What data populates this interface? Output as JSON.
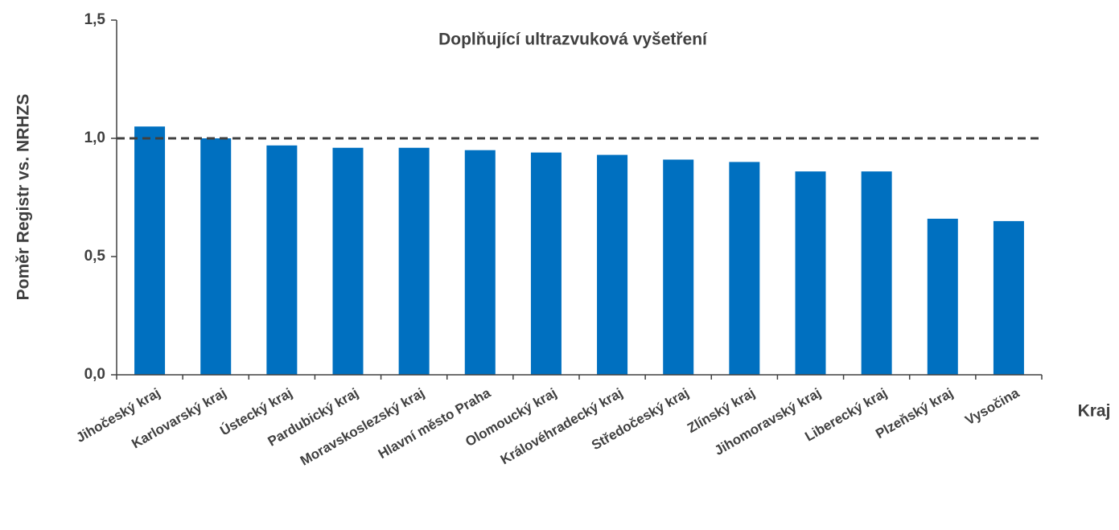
{
  "chart_data": {
    "type": "bar",
    "title": "Doplňující ultrazvuková vyšetření",
    "y_label": "Poměr Registr vs. NRHZS",
    "x_label": "Kraj",
    "categories": [
      "Jihočeský kraj",
      "Karlovarský kraj",
      "Ústecký kraj",
      "Pardubický kraj",
      "Moravskoslezský kraj",
      "Hlavní město Praha",
      "Olomoucký kraj",
      "Královéhradecký kraj",
      "Středočeský kraj",
      "Zlínský kraj",
      "Jihomoravský kraj",
      "Liberecký kraj",
      "Plzeňský kraj",
      "Vysočina"
    ],
    "values": [
      1.05,
      1.0,
      0.97,
      0.96,
      0.96,
      0.95,
      0.94,
      0.93,
      0.91,
      0.9,
      0.86,
      0.86,
      0.66,
      0.65
    ],
    "color": "#0070c0",
    "reference_line": 1.0,
    "ylim": [
      0,
      1.5
    ],
    "yticks": [
      {
        "value": 0,
        "label": "0,0"
      },
      {
        "value": 0.5,
        "label": "0,5"
      },
      {
        "value": 1.0,
        "label": "1,0"
      },
      {
        "value": 1.5,
        "label": "1,5"
      }
    ],
    "grid": false
  }
}
